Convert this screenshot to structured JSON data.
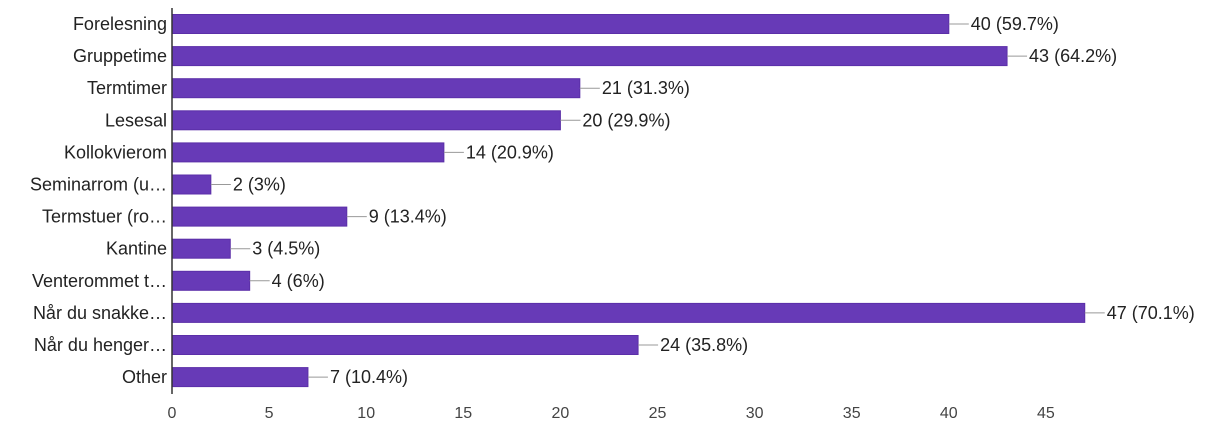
{
  "chart_data": {
    "type": "bar",
    "orientation": "horizontal",
    "categories": [
      "Forelesning",
      "Gruppetime",
      "Termtimer",
      "Lesesal",
      "Kollokvierom",
      "Seminarrom (u…",
      "Termstuer (ro…",
      "Kantine",
      "Venterommet t…",
      "Når du snakke…",
      "Når du henger…",
      "Other"
    ],
    "values": [
      40,
      43,
      21,
      20,
      14,
      2,
      9,
      3,
      4,
      47,
      24,
      7
    ],
    "value_labels": [
      "40 (59.7%)",
      "43 (64.2%)",
      "21 (31.3%)",
      "20 (29.9%)",
      "14 (20.9%)",
      "2 (3%)",
      "9 (13.4%)",
      "3 (4.5%)",
      "4 (6%)",
      "47 (70.1%)",
      "24 (35.8%)",
      "7 (10.4%)"
    ],
    "xticks": [
      "0",
      "5",
      "10",
      "15",
      "20",
      "25",
      "30",
      "35",
      "40",
      "45"
    ],
    "xlim": [
      0,
      47
    ],
    "title": "",
    "xlabel": "",
    "ylabel": "",
    "grid": false,
    "legend": "none",
    "colors": {
      "bar": "#673ab7",
      "bar_outline": "#5b2fa8",
      "leader": "#999999",
      "axis": "#333333",
      "text": "#222222"
    }
  }
}
